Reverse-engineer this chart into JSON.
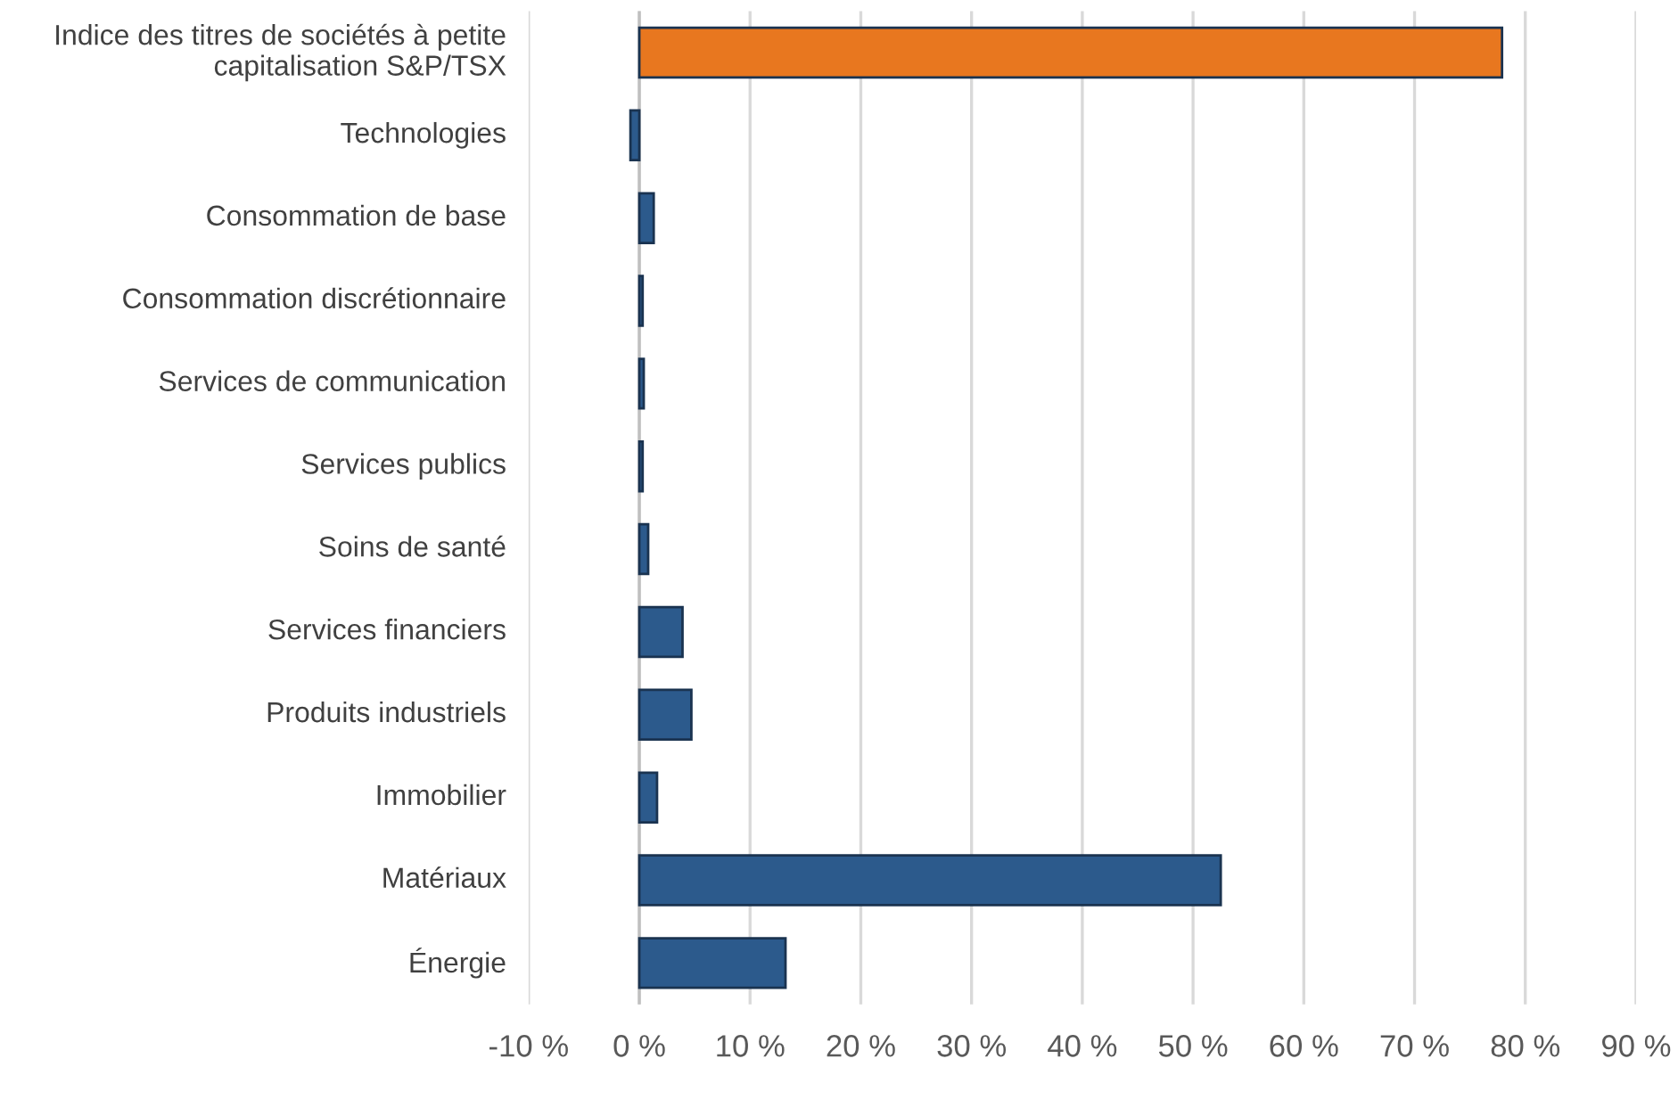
{
  "chart_data": {
    "type": "bar",
    "orientation": "horizontal",
    "categories": [
      "Indice des titres de sociétés à petite capitalisation S&P/TSX",
      "Technologies",
      "Consommation de base",
      "Consommation discrétionnaire",
      "Services de communication",
      "Services publics",
      "Soins de santé",
      "Services financiers",
      "Produits industriels",
      "Immobilier",
      "Matériaux",
      "Énergie"
    ],
    "values": [
      77.9,
      -0.8,
      1.3,
      0.3,
      0.4,
      0.3,
      0.8,
      3.9,
      4.7,
      1.6,
      52.5,
      13.2
    ],
    "colors": [
      "#e8771f",
      "#2c5a8c",
      "#2c5a8c",
      "#2c5a8c",
      "#2c5a8c",
      "#2c5a8c",
      "#2c5a8c",
      "#2c5a8c",
      "#2c5a8c",
      "#2c5a8c",
      "#2c5a8c",
      "#2c5a8c"
    ],
    "xlim": [
      -10,
      90
    ],
    "xticks": [
      {
        "value": -10,
        "label": "-10 %"
      },
      {
        "value": 0,
        "label": "0 %"
      },
      {
        "value": 10,
        "label": "10 %"
      },
      {
        "value": 20,
        "label": "20 %"
      },
      {
        "value": 30,
        "label": "30 %"
      },
      {
        "value": 40,
        "label": "40 %"
      },
      {
        "value": 50,
        "label": "50 %"
      },
      {
        "value": 60,
        "label": "60 %"
      },
      {
        "value": 70,
        "label": "70 %"
      },
      {
        "value": 80,
        "label": "80 %"
      },
      {
        "value": 90,
        "label": "90 %"
      }
    ],
    "grid": "x"
  }
}
